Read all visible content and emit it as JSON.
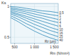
{
  "chart_data": {
    "type": "line",
    "y_label": "Ks",
    "x_label": "Rm (N/mm²)",
    "annotation": "Rz (µm)",
    "color": "#2b86b5",
    "grid": true,
    "x": [
      400,
      600,
      800,
      1000,
      1200,
      1400,
      1600
    ],
    "xlim": [
      400,
      1600
    ],
    "xticks": [
      500,
      {
        "value": 1000,
        "label": "1 000"
      },
      {
        "value": 1500,
        "label": "1 500"
      }
    ],
    "ylim": [
      0.4,
      1.05
    ],
    "yticks": [
      0.5,
      1
    ],
    "series": [
      {
        "name": "0,5",
        "values": [
          1.0,
          0.99,
          0.97,
          0.95,
          0.93,
          0.92,
          0.9
        ]
      },
      {
        "name": "1",
        "values": [
          0.98,
          0.96,
          0.94,
          0.92,
          0.89,
          0.87,
          0.85
        ]
      },
      {
        "name": "2",
        "values": [
          0.96,
          0.94,
          0.91,
          0.88,
          0.85,
          0.82,
          0.79
        ]
      },
      {
        "name": "4",
        "values": [
          0.94,
          0.91,
          0.88,
          0.84,
          0.81,
          0.77,
          0.74
        ]
      },
      {
        "name": "6",
        "values": [
          0.92,
          0.88,
          0.84,
          0.8,
          0.76,
          0.72,
          0.68
        ]
      },
      {
        "name": "10",
        "values": [
          0.9,
          0.86,
          0.81,
          0.76,
          0.71,
          0.66,
          0.62
        ]
      },
      {
        "name": "16",
        "values": [
          0.88,
          0.83,
          0.77,
          0.71,
          0.66,
          0.61,
          0.57
        ]
      },
      {
        "name": "25",
        "values": [
          0.85,
          0.79,
          0.72,
          0.66,
          0.6,
          0.55,
          0.51
        ]
      },
      {
        "name": "40",
        "values": [
          0.82,
          0.75,
          0.67,
          0.6,
          0.54,
          0.49,
          0.45
        ]
      }
    ]
  }
}
